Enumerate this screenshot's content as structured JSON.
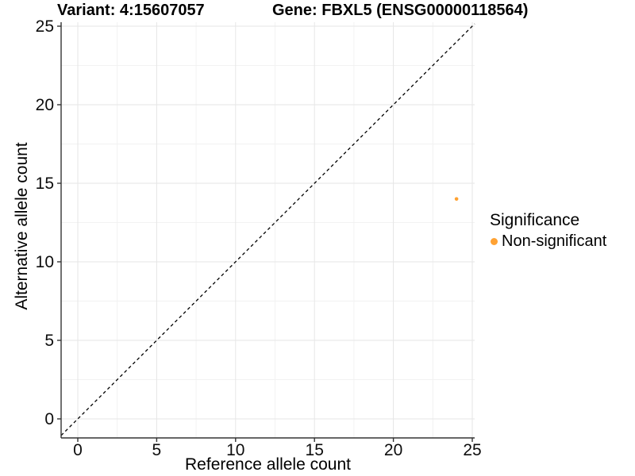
{
  "titles": {
    "variant": "Variant: 4:15607057",
    "gene": "Gene: FBXL5 (ENSG00000118564)"
  },
  "chart_data": {
    "type": "scatter",
    "title": "Variant: 4:15607057    Gene: FBXL5 (ENSG00000118564)",
    "xlabel": "Reference allele count",
    "ylabel": "Alternative allele count",
    "xlim": [
      0,
      25
    ],
    "ylim": [
      0,
      25
    ],
    "x_ticks": [
      0,
      5,
      10,
      15,
      20,
      25
    ],
    "y_ticks": [
      0,
      5,
      10,
      15,
      20,
      25
    ],
    "x_minor_ticks": [
      2.5,
      7.5,
      12.5,
      17.5,
      22.5
    ],
    "y_minor_ticks": [
      2.5,
      7.5,
      12.5,
      17.5,
      22.5
    ],
    "grid": "major+minor",
    "points": [
      {
        "x": 24,
        "y": 14,
        "series": "Non-significant",
        "color": "#FFA233"
      }
    ],
    "reference_line": {
      "type": "identity",
      "equation": "y = x",
      "style": "dashed",
      "color": "#000000"
    },
    "legend": {
      "title": "Significance",
      "position": "right",
      "entries": [
        {
          "label": "Non-significant",
          "color": "#FFA233",
          "marker": "circle"
        }
      ]
    }
  },
  "colors": {
    "background": "#FFFFFF",
    "grid_major": "#E6E6E6",
    "grid_minor": "#F2F2F2",
    "axis_line": "#333333",
    "tick_label": "#0D0D0D",
    "point": "#FFA233"
  }
}
